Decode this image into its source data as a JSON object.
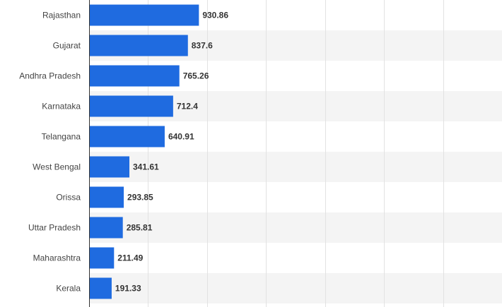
{
  "chart_data": {
    "type": "bar",
    "orientation": "horizontal",
    "title": "",
    "xlabel": "",
    "ylabel": "",
    "categories": [
      "Rajasthan",
      "Gujarat",
      "Andhra Pradesh",
      "Karnataka",
      "Telangana",
      "West Bengal",
      "Orissa",
      "Uttar Pradesh",
      "Maharashtra",
      "Kerala"
    ],
    "values": [
      930.86,
      837.6,
      765.26,
      712.4,
      640.91,
      341.61,
      293.85,
      285.81,
      211.49,
      191.33
    ],
    "value_labels": [
      "930.86",
      "837.6",
      "765.26",
      "712.4",
      "640.91",
      "341.61",
      "293.85",
      "285.81",
      "211.49",
      "191.33"
    ],
    "xlim": [
      0,
      3500
    ],
    "grid": true,
    "legend": "none",
    "colors": {
      "bar": "#1f6be0",
      "band": "#f4f4f4",
      "grid": "#e2e2e2",
      "axis": "#333333"
    }
  }
}
